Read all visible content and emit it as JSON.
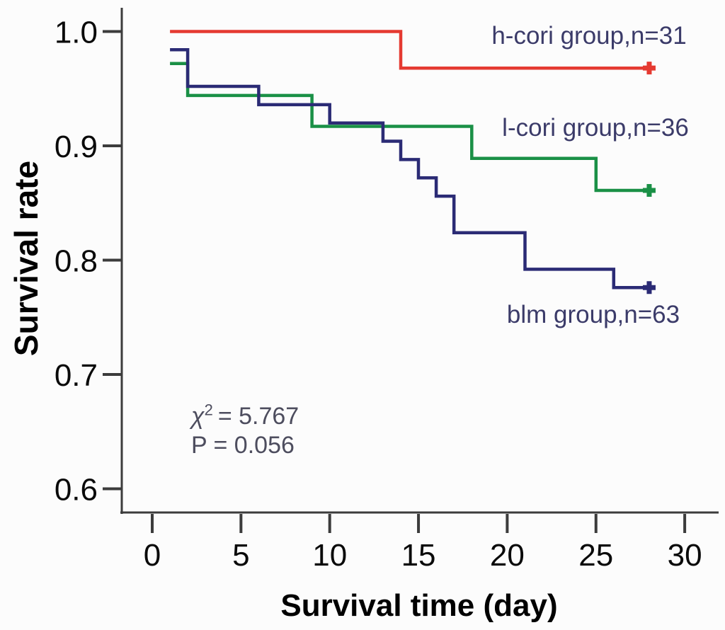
{
  "chart_data": {
    "type": "line",
    "chart_style": "kaplan-meier-step",
    "title": "",
    "xlabel": "Survival time (day)",
    "ylabel": "Survival rate",
    "xlim": [
      0,
      32
    ],
    "ylim": [
      0.58,
      1.02
    ],
    "x_ticks": [
      0,
      5,
      10,
      15,
      20,
      25,
      30
    ],
    "y_ticks": [
      1.0,
      0.9,
      0.8,
      0.7,
      0.6
    ],
    "y_tick_labels": [
      "1.0",
      "0.9",
      "0.8",
      "0.7",
      "0.6"
    ],
    "grid": false,
    "legend_position": "inline-labels",
    "stats": {
      "chi_symbol": "χ",
      "chi_sup": "2",
      "chi_eq": "= 5.767",
      "p_line": "P = 0.056",
      "chi_squared_value": 5.767,
      "p_value": 0.056
    },
    "series": [
      {
        "key": "h-cori",
        "label": "h-cori group,n=31",
        "n": 31,
        "color": "#e53a31",
        "end_day": 28,
        "end_marker": "plus-censor",
        "steps": [
          [
            1,
            1.0
          ],
          [
            14,
            0.968
          ]
        ]
      },
      {
        "key": "l-cori",
        "label": "l-cori group,n=36",
        "n": 36,
        "color": "#1a9046",
        "end_day": 28,
        "end_marker": "plus-censor",
        "steps": [
          [
            1,
            0.972
          ],
          [
            2,
            0.944
          ],
          [
            9,
            0.917
          ],
          [
            18,
            0.889
          ],
          [
            25,
            0.861
          ]
        ]
      },
      {
        "key": "blm",
        "label": "blm group,n=63",
        "n": 63,
        "color": "#2b2b75",
        "end_day": 28,
        "end_marker": "plus-censor",
        "steps": [
          [
            1,
            0.984
          ],
          [
            2,
            0.952
          ],
          [
            6,
            0.936
          ],
          [
            10,
            0.92
          ],
          [
            13,
            0.904
          ],
          [
            14,
            0.888
          ],
          [
            15,
            0.872
          ],
          [
            16,
            0.856
          ],
          [
            17,
            0.824
          ],
          [
            21,
            0.792
          ],
          [
            26,
            0.776
          ]
        ]
      }
    ],
    "axis_color": "#3c3c3c"
  }
}
